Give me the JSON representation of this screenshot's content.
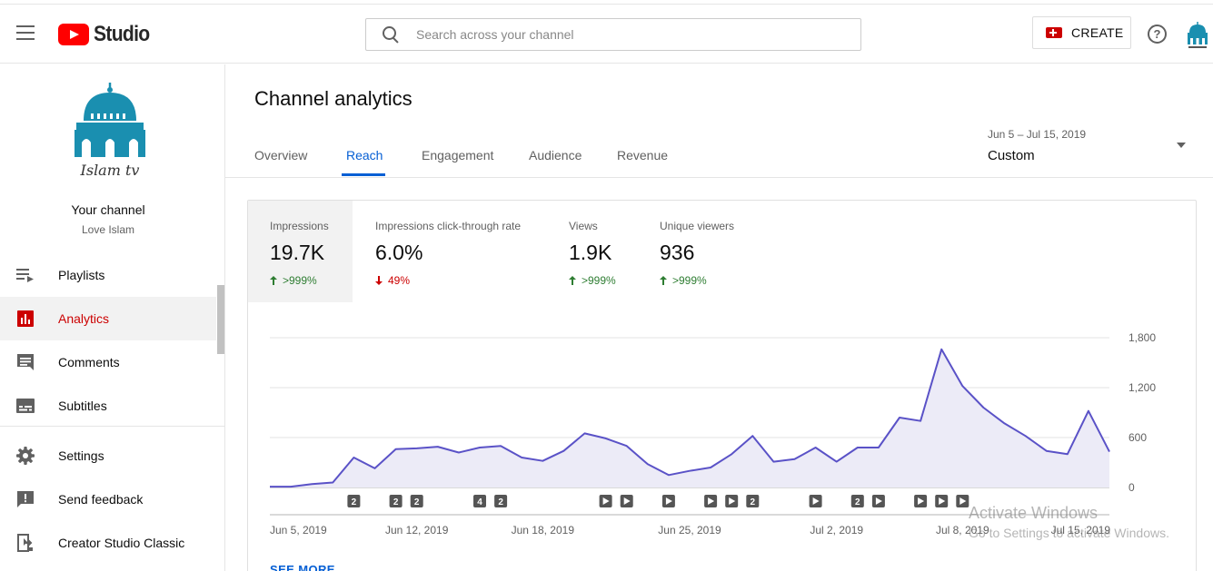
{
  "header": {
    "logo_text": "Studio",
    "search_placeholder": "Search across your channel",
    "create_label": "CREATE",
    "help_glyph": "?",
    "icons": [
      "hamburger-menu-icon",
      "youtube-play-icon",
      "search-icon",
      "create-video-icon",
      "help-icon",
      "account-avatar"
    ]
  },
  "sidebar": {
    "channel_title": "Your channel",
    "channel_subtitle": "Love Islam",
    "channel_logo_text": "Islam tv",
    "items": [
      {
        "label": "Playlists",
        "icon": "playlists-icon",
        "active": false
      },
      {
        "label": "Analytics",
        "icon": "analytics-icon",
        "active": true
      },
      {
        "label": "Comments",
        "icon": "comments-icon",
        "active": false
      },
      {
        "label": "Subtitles",
        "icon": "subtitles-icon",
        "active": false
      },
      {
        "label": "Settings",
        "icon": "settings-icon",
        "active": false
      },
      {
        "label": "Send feedback",
        "icon": "feedback-icon",
        "active": false
      },
      {
        "label": "Creator Studio Classic",
        "icon": "classic-studio-icon",
        "active": false
      }
    ]
  },
  "main": {
    "title": "Channel analytics",
    "tabs": [
      {
        "label": "Overview",
        "active": false
      },
      {
        "label": "Reach",
        "active": true
      },
      {
        "label": "Engagement",
        "active": false
      },
      {
        "label": "Audience",
        "active": false
      },
      {
        "label": "Revenue",
        "active": false
      }
    ],
    "date_range": "Jun 5 – Jul 15, 2019",
    "date_preset": "Custom",
    "see_more": "SEE MORE"
  },
  "metrics": [
    {
      "label": "Impressions",
      "value": "19.7K",
      "delta": ">999%",
      "direction": "up",
      "selected": true
    },
    {
      "label": "Impressions click-through rate",
      "value": "6.0%",
      "delta": "49%",
      "direction": "down",
      "selected": false
    },
    {
      "label": "Views",
      "value": "1.9K",
      "delta": ">999%",
      "direction": "up",
      "selected": false
    },
    {
      "label": "Unique viewers",
      "value": "936",
      "delta": ">999%",
      "direction": "up",
      "selected": false
    }
  ],
  "colors": {
    "accent_red": "#cc0000",
    "youtube_red": "#ff0000",
    "tab_blue": "#065fd4",
    "line": "#5a52c7",
    "area_fill": "#ecebf7",
    "up_green": "#2e7d32",
    "logo_teal": "#1a8fb0"
  },
  "chart_data": {
    "type": "area",
    "series": [
      {
        "values": [
          10,
          10,
          40,
          60,
          360,
          230,
          460,
          470,
          490,
          420,
          480,
          500,
          360,
          320,
          440,
          650,
          590,
          500,
          280,
          150,
          200,
          240,
          400,
          620,
          310,
          340,
          480,
          310,
          480,
          480,
          840,
          800,
          1660,
          1220,
          960,
          770,
          620,
          440,
          400,
          920,
          430
        ]
      }
    ],
    "x_tick_labels": [
      "Jun 5, 2019",
      "Jun 12, 2019",
      "Jun 18, 2019",
      "Jun 25, 2019",
      "Jul 2, 2019",
      "Jul 8, 2019",
      "Jul 15, 2019"
    ],
    "x_tick_day_index": [
      0,
      7,
      13,
      20,
      27,
      33,
      40
    ],
    "y_tick_labels": [
      "0",
      "600",
      "1,200",
      "1,800"
    ],
    "y_tick_values": [
      0,
      600,
      1200,
      1800
    ],
    "ylim": [
      0,
      1800
    ],
    "y_axis_side": "right",
    "grid": true,
    "markers": [
      {
        "day": 4,
        "kind": "count",
        "label": "2"
      },
      {
        "day": 6,
        "kind": "count",
        "label": "2"
      },
      {
        "day": 7,
        "kind": "count",
        "label": "2"
      },
      {
        "day": 10,
        "kind": "count",
        "label": "4"
      },
      {
        "day": 11,
        "kind": "count",
        "label": "2"
      },
      {
        "day": 16,
        "kind": "video"
      },
      {
        "day": 17,
        "kind": "video"
      },
      {
        "day": 19,
        "kind": "video"
      },
      {
        "day": 21,
        "kind": "video"
      },
      {
        "day": 22,
        "kind": "video"
      },
      {
        "day": 23,
        "kind": "count",
        "label": "2"
      },
      {
        "day": 26,
        "kind": "video"
      },
      {
        "day": 28,
        "kind": "count",
        "label": "2"
      },
      {
        "day": 29,
        "kind": "video"
      },
      {
        "day": 31,
        "kind": "video"
      },
      {
        "day": 32,
        "kind": "video"
      },
      {
        "day": 33,
        "kind": "video"
      }
    ]
  },
  "watermark": {
    "line1": "Activate Windows",
    "line2": "Go to Settings to activate Windows."
  }
}
